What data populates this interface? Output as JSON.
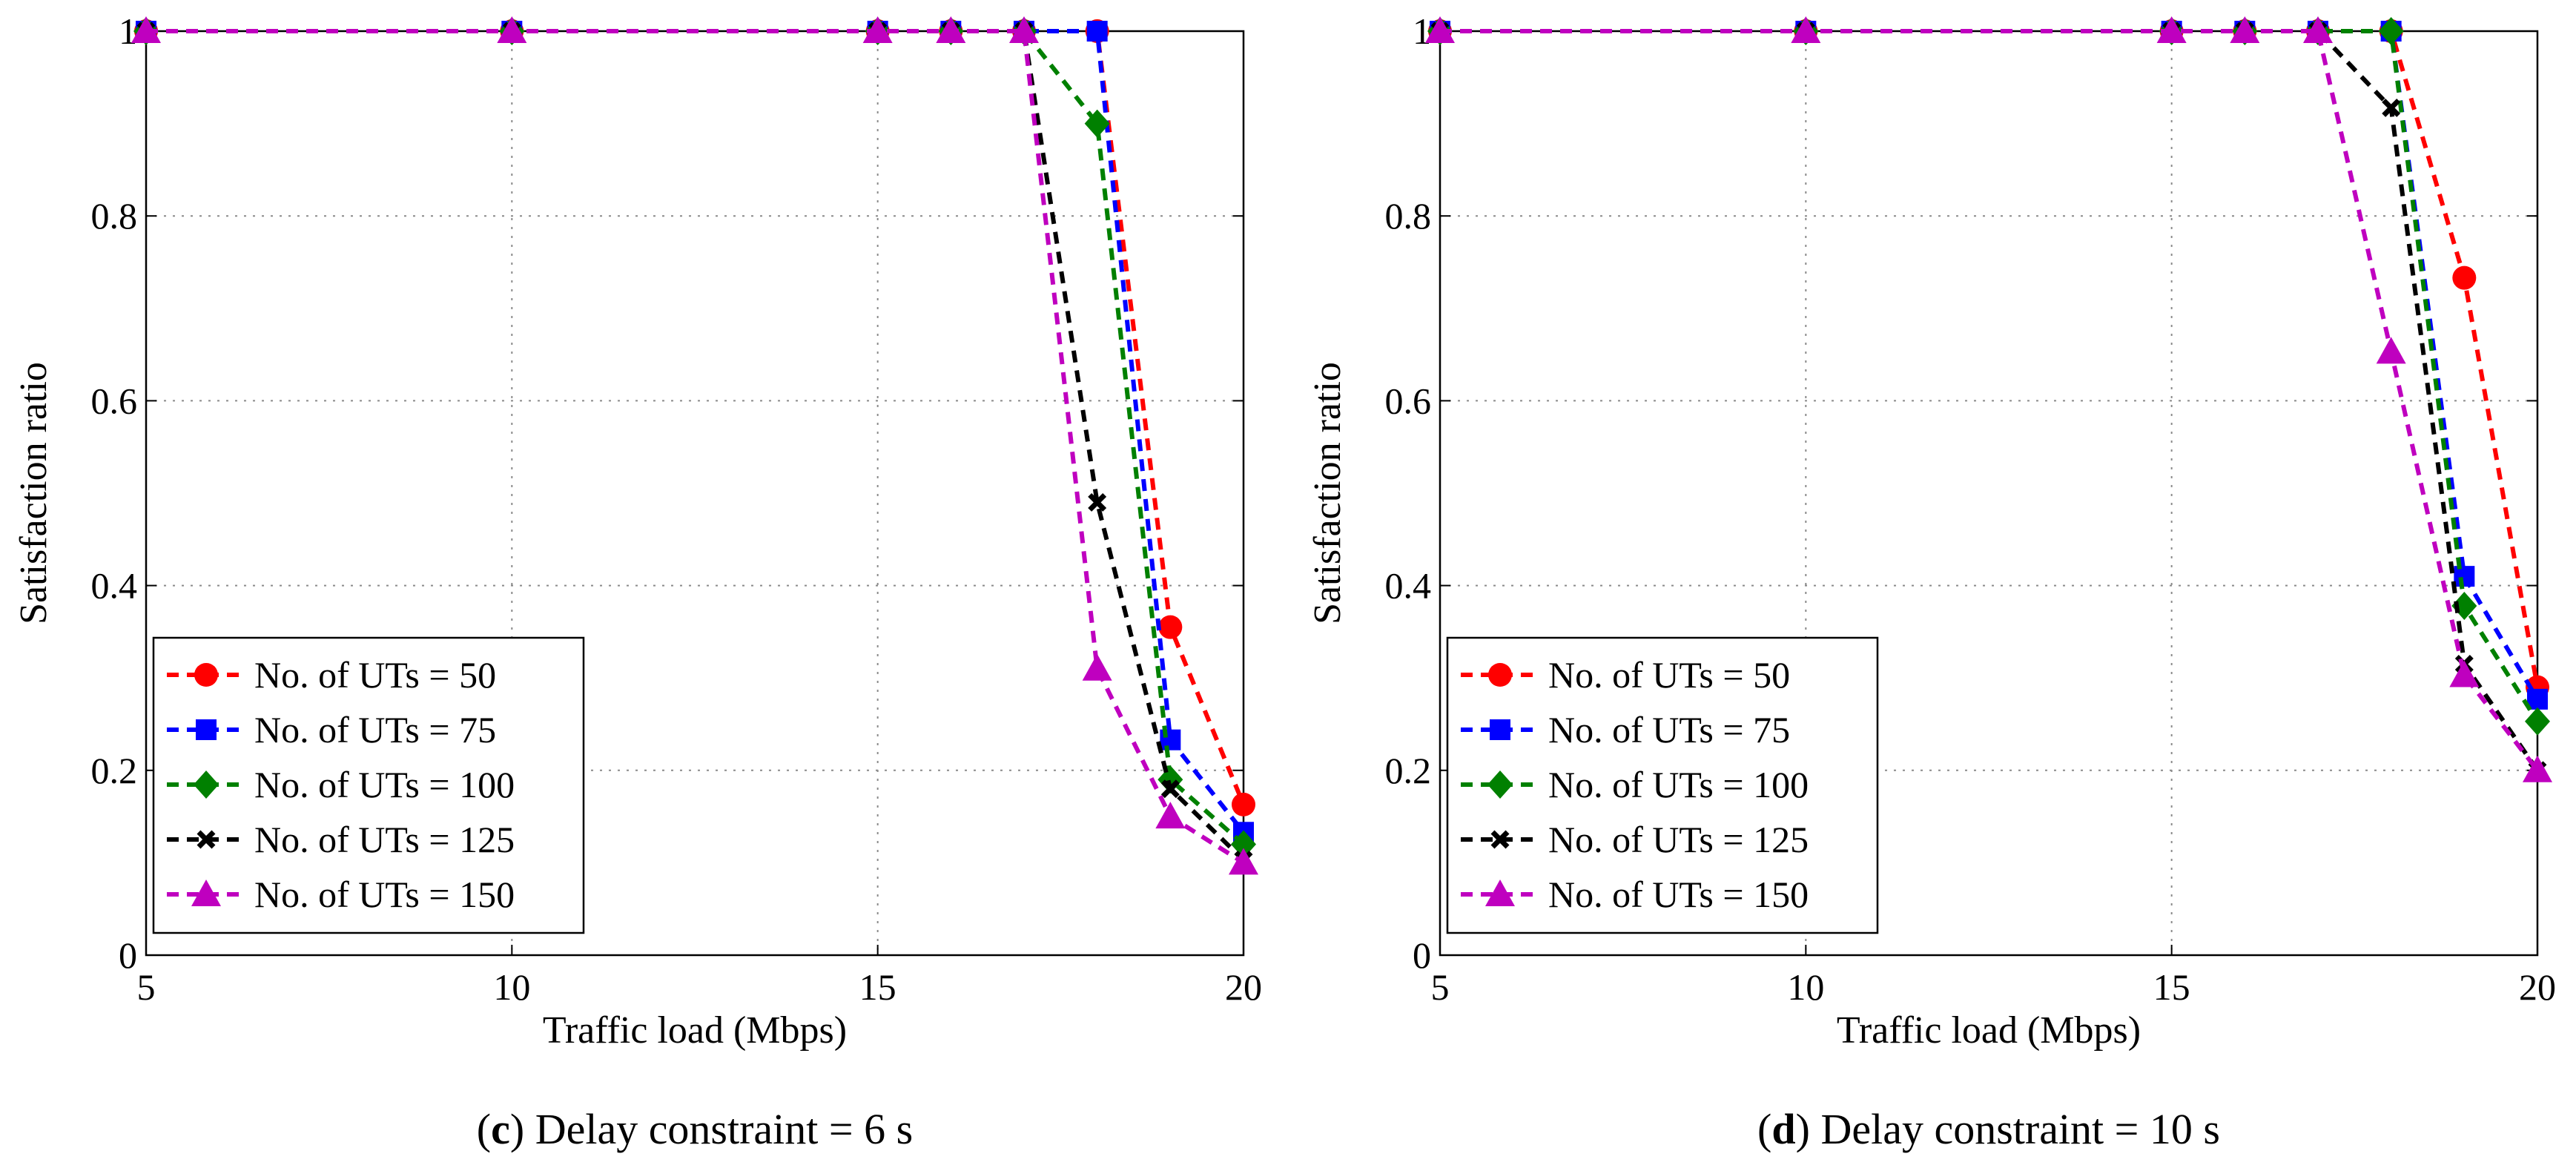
{
  "chart_data": [
    {
      "type": "line",
      "caption_letter": "c",
      "caption_text": "Delay constraint = 6 s",
      "xlabel": "Traffic load (Mbps)",
      "ylabel": "Satisfaction ratio",
      "xlim": [
        5,
        20
      ],
      "ylim": [
        0,
        1
      ],
      "xticks": [
        "5",
        "10",
        "15",
        "20"
      ],
      "yticks": [
        "0",
        "0.2",
        "0.4",
        "0.6",
        "0.8",
        "1"
      ],
      "grid": true,
      "legend_position": "bottom-left",
      "x": [
        5,
        10,
        15,
        16,
        17,
        18,
        19,
        20
      ],
      "series": [
        {
          "name": "No. of UTs = 50",
          "color": "#ff0000",
          "marker": "circle",
          "values": [
            1,
            1,
            1,
            1,
            1,
            1,
            0.355,
            0.163
          ]
        },
        {
          "name": "No. of UTs = 75",
          "color": "#0000ff",
          "marker": "square",
          "values": [
            1,
            1,
            1,
            1,
            1,
            1,
            0.233,
            0.133
          ]
        },
        {
          "name": "No. of UTs = 100",
          "color": "#008000",
          "marker": "diamond",
          "values": [
            1,
            1,
            1,
            1,
            1,
            0.9,
            0.19,
            0.12
          ]
        },
        {
          "name": "No. of UTs = 125",
          "color": "#000000",
          "marker": "x",
          "values": [
            1,
            1,
            1,
            1,
            1,
            0.49,
            0.18,
            0.103
          ]
        },
        {
          "name": "No. of UTs = 150",
          "color": "#bf00bf",
          "marker": "triangle",
          "values": [
            1,
            1,
            1,
            1,
            1,
            0.31,
            0.15,
            0.1
          ]
        }
      ]
    },
    {
      "type": "line",
      "caption_letter": "d",
      "caption_text": "Delay constraint = 10 s",
      "xlabel": "Traffic load (Mbps)",
      "ylabel": "Satisfaction ratio",
      "xlim": [
        5,
        20
      ],
      "ylim": [
        0,
        1
      ],
      "xticks": [
        "5",
        "10",
        "15",
        "20"
      ],
      "yticks": [
        "0",
        "0.2",
        "0.4",
        "0.6",
        "0.8",
        "1"
      ],
      "grid": true,
      "legend_position": "bottom-left",
      "x": [
        5,
        10,
        15,
        16,
        17,
        18,
        19,
        20
      ],
      "series": [
        {
          "name": "No. of UTs = 50",
          "color": "#ff0000",
          "marker": "circle",
          "values": [
            1,
            1,
            1,
            1,
            1,
            1,
            0.733,
            0.29
          ]
        },
        {
          "name": "No. of UTs = 75",
          "color": "#0000ff",
          "marker": "square",
          "values": [
            1,
            1,
            1,
            1,
            1,
            1,
            0.41,
            0.277
          ]
        },
        {
          "name": "No. of UTs = 100",
          "color": "#008000",
          "marker": "diamond",
          "values": [
            1,
            1,
            1,
            1,
            1,
            1,
            0.378,
            0.253
          ]
        },
        {
          "name": "No. of UTs = 125",
          "color": "#000000",
          "marker": "x",
          "values": [
            1,
            1,
            1,
            1,
            1,
            0.917,
            0.315,
            0.2
          ]
        },
        {
          "name": "No. of UTs = 150",
          "color": "#bf00bf",
          "marker": "triangle",
          "values": [
            1,
            1,
            1,
            1,
            1,
            0.653,
            0.303,
            0.2
          ]
        }
      ]
    }
  ]
}
